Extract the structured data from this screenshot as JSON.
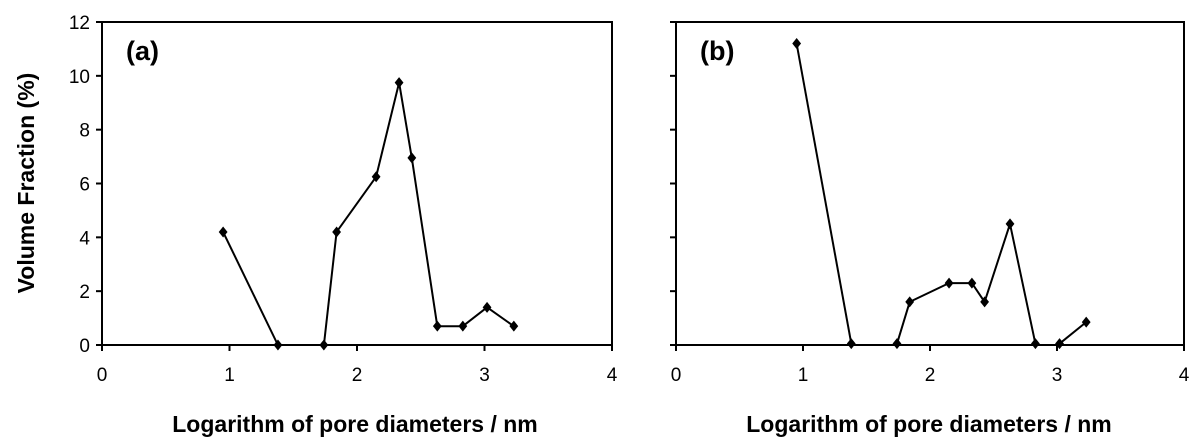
{
  "chart_data": [
    {
      "type": "line",
      "panel_label": "(a)",
      "xlabel": "Logarithm of pore diameters / nm",
      "ylabel": "Volume Fraction (%)",
      "xlim": [
        0,
        4
      ],
      "ylim": [
        0,
        12
      ],
      "xticks": [
        "0",
        "1",
        "2",
        "3",
        "4"
      ],
      "yticks": [
        "0",
        "2",
        "4",
        "6",
        "8",
        "10",
        "12"
      ],
      "grid": false,
      "marker": "diamond",
      "line_color": "#000000",
      "series": [
        {
          "segments": [
            [
              [
                0.95,
                4.2
              ],
              [
                1.38,
                0.0
              ]
            ],
            [
              [
                1.74,
                0.0
              ],
              [
                1.84,
                4.2
              ],
              [
                2.15,
                6.25
              ],
              [
                2.33,
                9.75
              ],
              [
                2.43,
                6.95
              ],
              [
                2.63,
                0.7
              ],
              [
                2.83,
                0.7
              ],
              [
                3.02,
                1.4
              ],
              [
                3.23,
                0.7
              ]
            ]
          ]
        }
      ]
    },
    {
      "type": "line",
      "panel_label": "(b)",
      "xlabel": "Logarithm of pore diameters / nm",
      "xlim": [
        0,
        4
      ],
      "ylim": [
        0,
        12
      ],
      "xticks": [
        "0",
        "1",
        "2",
        "3",
        "4"
      ],
      "grid": false,
      "marker": "diamond",
      "line_color": "#000000",
      "series": [
        {
          "segments": [
            [
              [
                0.95,
                11.2
              ],
              [
                1.38,
                0.05
              ]
            ],
            [
              [
                1.74,
                0.05
              ],
              [
                1.84,
                1.6
              ],
              [
                2.15,
                2.3
              ],
              [
                2.33,
                2.3
              ],
              [
                2.43,
                1.6
              ],
              [
                2.63,
                4.5
              ],
              [
                2.83,
                0.05
              ]
            ],
            [
              [
                3.02,
                0.05
              ],
              [
                3.23,
                0.85
              ]
            ]
          ]
        }
      ]
    }
  ]
}
